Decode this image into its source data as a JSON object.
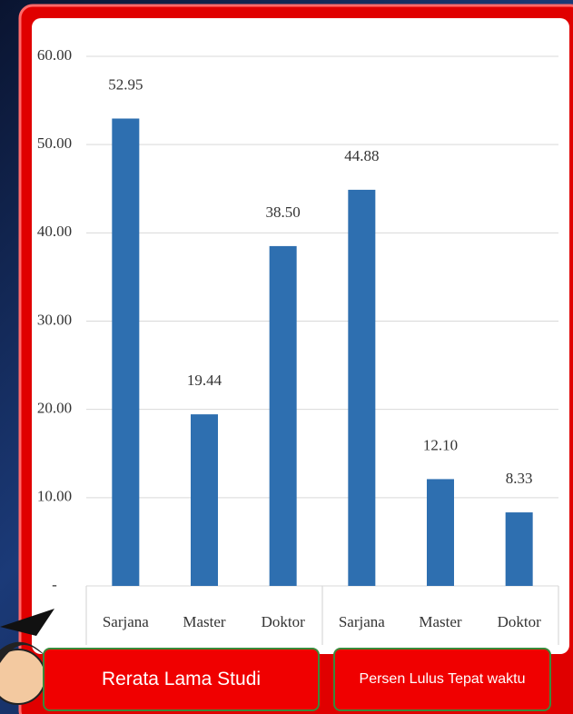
{
  "chart_data": {
    "type": "bar",
    "categories": [
      "Sarjana",
      "Master",
      "Doktor",
      "Sarjana",
      "Master",
      "Doktor"
    ],
    "values": [
      52.95,
      19.44,
      38.5,
      44.88,
      12.1,
      8.33
    ],
    "value_labels": [
      "52.95",
      "19.44",
      "38.50",
      "44.88",
      "12.10",
      "8.33"
    ],
    "color": "#2e6fb0",
    "ylim": [
      0,
      60
    ],
    "yticks": [
      {
        "value": 0,
        "label": "-"
      },
      {
        "value": 10,
        "label": "10.00"
      },
      {
        "value": 20,
        "label": "20.00"
      },
      {
        "value": 30,
        "label": "30.00"
      },
      {
        "value": 40,
        "label": "40.00"
      },
      {
        "value": 50,
        "label": "50.00"
      },
      {
        "value": 60,
        "label": "60.00"
      }
    ],
    "grid": true,
    "group_labels": [
      "Rerata Lama Studi",
      "Persen Lulus Tepat waktu"
    ]
  }
}
